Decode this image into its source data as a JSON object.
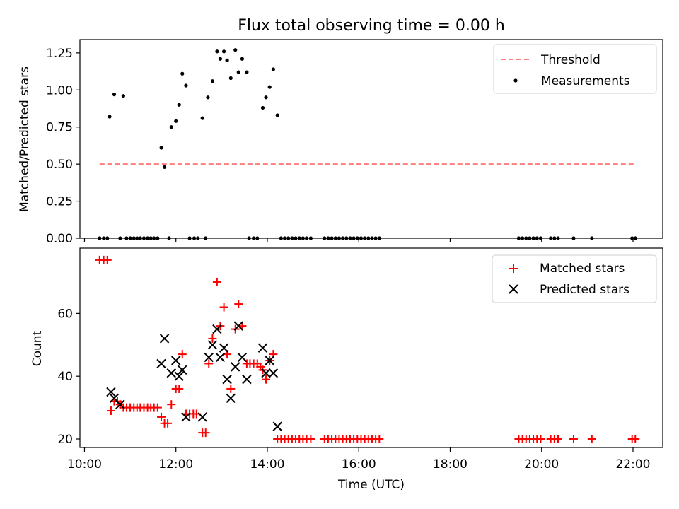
{
  "chart_data": [
    {
      "type": "scatter",
      "title": "Flux total observing time = 0.00 h",
      "xlabel": "",
      "ylabel": "Matched/Predicted stars",
      "ylim": [
        0,
        1.34
      ],
      "yticks": [
        0,
        0.25,
        0.5,
        0.75,
        1.0,
        1.25
      ],
      "yticklabels": [
        "0.00",
        "0.25",
        "0.50",
        "0.75",
        "1.00",
        "1.25"
      ],
      "xlim": [
        9.9,
        22.65
      ],
      "xticks": [
        10,
        12,
        14,
        16,
        18,
        20,
        22
      ],
      "legend_placement": "upper right",
      "legend": {
        "threshold": "Threshold",
        "measurements": "Measurements"
      },
      "threshold": {
        "value": 0.5,
        "x": [
          10.33,
          22.07
        ],
        "color": "#ff7b7b"
      },
      "measurements": {
        "x": [
          10.55,
          10.65,
          10.85,
          11.68,
          11.75,
          11.9,
          12.0,
          12.07,
          12.14,
          12.22,
          12.58,
          12.7,
          12.8,
          12.9,
          12.97,
          13.05,
          13.12,
          13.2,
          13.3,
          13.37,
          13.45,
          13.55,
          13.9,
          13.97,
          14.05,
          14.13,
          14.22,
          10.33,
          10.42,
          10.5,
          10.78,
          10.92,
          11.0,
          11.08,
          11.15,
          11.22,
          11.3,
          11.38,
          11.45,
          11.52,
          11.6,
          11.85,
          12.3,
          12.4,
          12.48,
          12.65,
          13.6,
          13.7,
          13.78,
          14.3,
          14.38,
          14.46,
          14.54,
          14.62,
          14.7,
          14.78,
          14.86,
          14.95,
          15.25,
          15.33,
          15.41,
          15.49,
          15.57,
          15.65,
          15.73,
          15.81,
          15.89,
          15.97,
          16.05,
          16.13,
          16.21,
          16.29,
          16.37,
          16.45,
          19.5,
          19.58,
          19.66,
          19.74,
          19.82,
          19.9,
          19.98,
          20.2,
          20.28,
          20.36,
          20.7,
          21.1,
          21.98,
          22.05
        ],
        "y": [
          0.82,
          0.97,
          0.96,
          0.61,
          0.48,
          0.75,
          0.79,
          0.9,
          1.11,
          1.03,
          0.81,
          0.95,
          1.06,
          1.26,
          1.21,
          1.26,
          1.2,
          1.08,
          1.27,
          1.12,
          1.21,
          1.12,
          0.88,
          0.95,
          1.02,
          1.14,
          0.83,
          0,
          0,
          0,
          0,
          0,
          0,
          0,
          0,
          0,
          0,
          0,
          0,
          0,
          0,
          0,
          0,
          0,
          0,
          0,
          0,
          0,
          0,
          0,
          0,
          0,
          0,
          0,
          0,
          0,
          0,
          0,
          0,
          0,
          0,
          0,
          0,
          0,
          0,
          0,
          0,
          0,
          0,
          0,
          0,
          0,
          0,
          0,
          0,
          0,
          0,
          0,
          0,
          0,
          0,
          0,
          0,
          0,
          0,
          0,
          0,
          0
        ]
      }
    },
    {
      "type": "scatter",
      "title": "",
      "xlabel": "Time (UTC)",
      "ylabel": "Count",
      "ylim": [
        17.3,
        80.8
      ],
      "yticks": [
        20,
        40,
        60
      ],
      "xlim": [
        9.9,
        22.65
      ],
      "xticks": [
        10,
        12,
        14,
        16,
        18,
        20,
        22
      ],
      "xticklabels": [
        "10:00",
        "12:00",
        "14:00",
        "16:00",
        "18:00",
        "20:00",
        "22:00"
      ],
      "legend_placement": "upper right",
      "series": [
        {
          "name": "Matched stars",
          "marker": "plus",
          "color": "#ff0000",
          "x": [
            10.33,
            10.42,
            10.5,
            10.58,
            10.65,
            10.72,
            10.78,
            10.85,
            10.92,
            11.0,
            11.08,
            11.15,
            11.22,
            11.3,
            11.38,
            11.45,
            11.52,
            11.6,
            11.68,
            11.75,
            11.82,
            11.9,
            12.0,
            12.07,
            12.14,
            12.22,
            12.3,
            12.38,
            12.45,
            12.58,
            12.65,
            12.72,
            12.8,
            12.9,
            12.97,
            13.05,
            13.12,
            13.2,
            13.3,
            13.37,
            13.45,
            13.55,
            13.62,
            13.7,
            13.78,
            13.85,
            13.9,
            13.97,
            14.05,
            14.13,
            14.22,
            14.3,
            14.38,
            14.46,
            14.54,
            14.62,
            14.7,
            14.78,
            14.86,
            14.95,
            15.25,
            15.33,
            15.41,
            15.49,
            15.57,
            15.65,
            15.73,
            15.81,
            15.89,
            15.97,
            16.05,
            16.13,
            16.21,
            16.29,
            16.37,
            16.45,
            19.5,
            19.58,
            19.66,
            19.74,
            19.82,
            19.9,
            19.98,
            20.2,
            20.28,
            20.36,
            20.7,
            21.1,
            21.98,
            22.05
          ],
          "y": [
            77,
            77,
            77,
            29,
            32,
            32,
            31,
            30,
            30,
            30,
            30,
            30,
            30,
            30,
            30,
            30,
            30,
            30,
            27,
            25,
            25,
            31,
            36,
            36,
            47,
            28,
            28,
            28,
            28,
            22,
            22,
            44,
            52,
            70,
            56,
            62,
            47,
            36,
            55,
            63,
            56,
            44,
            44,
            44,
            44,
            43,
            42,
            39,
            45,
            47,
            20,
            20,
            20,
            20,
            20,
            20,
            20,
            20,
            20,
            20,
            20,
            20,
            20,
            20,
            20,
            20,
            20,
            20,
            20,
            20,
            20,
            20,
            20,
            20,
            20,
            20,
            20,
            20,
            20,
            20,
            20,
            20,
            20,
            20,
            20,
            20,
            20,
            20,
            20,
            20
          ]
        },
        {
          "name": "Predicted stars",
          "marker": "x",
          "color": "#000000",
          "x": [
            10.58,
            10.65,
            10.78,
            11.68,
            11.75,
            11.9,
            12.0,
            12.07,
            12.14,
            12.22,
            12.58,
            12.72,
            12.8,
            12.9,
            12.97,
            13.05,
            13.12,
            13.2,
            13.3,
            13.37,
            13.45,
            13.55,
            13.9,
            13.97,
            14.05,
            14.13,
            14.22
          ],
          "y": [
            35,
            33,
            31,
            44,
            52,
            41,
            45,
            40,
            42,
            27,
            27,
            46,
            50,
            55,
            46,
            49,
            39,
            33,
            43,
            56,
            46,
            39,
            49,
            41,
            45,
            41,
            24
          ]
        }
      ]
    }
  ]
}
